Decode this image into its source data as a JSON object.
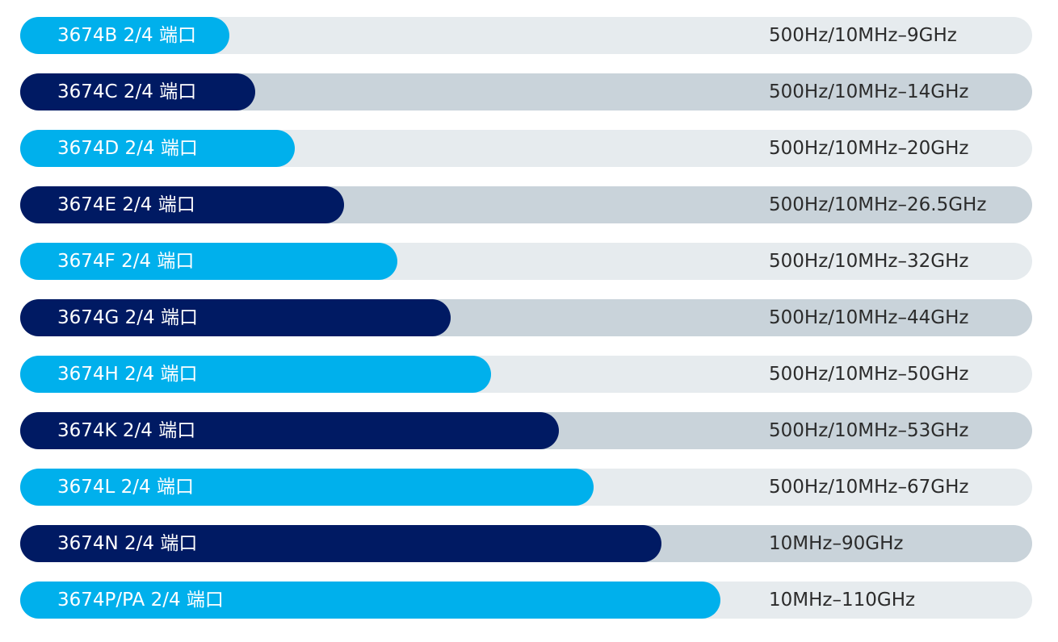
{
  "colors": {
    "light_fill": "#00B0EC",
    "dark_fill": "#001A63",
    "light_track": "#E6EBEE",
    "dark_track": "#C9D3DA"
  },
  "chart_data": {
    "type": "bar",
    "orientation": "horizontal",
    "grid": false,
    "categories": [
      "3674B 2/4 端口",
      "3674C 2/4 端口",
      "3674D 2/4 端口",
      "3674E 2/4 端口",
      "3674F 2/4 端口",
      "3674G 2/4 端口",
      "3674H 2/4 端口",
      "3674K 2/4 端口",
      "3674L 2/4 端口",
      "3674N 2/4 端口",
      "3674P/PA 2/4 端口"
    ],
    "values_max_ghz": [
      9,
      14,
      20,
      26.5,
      32,
      44,
      50,
      53,
      67,
      90,
      110
    ],
    "fill_percent": [
      20.7,
      23.2,
      27.1,
      32.0,
      37.3,
      42.5,
      46.5,
      53.2,
      56.7,
      63.4,
      69.2
    ],
    "range_labels": [
      "500Hz/10MHz–9GHz",
      "500Hz/10MHz–14GHz",
      "500Hz/10MHz–20GHz",
      "500Hz/10MHz–26.5GHz",
      "500Hz/10MHz–32GHz",
      "500Hz/10MHz–44GHz",
      "500Hz/10MHz–50GHz",
      "500Hz/10MHz–53GHz",
      "500Hz/10MHz–67GHz",
      "10MHz–90GHz",
      "10MHz–110GHz"
    ]
  }
}
